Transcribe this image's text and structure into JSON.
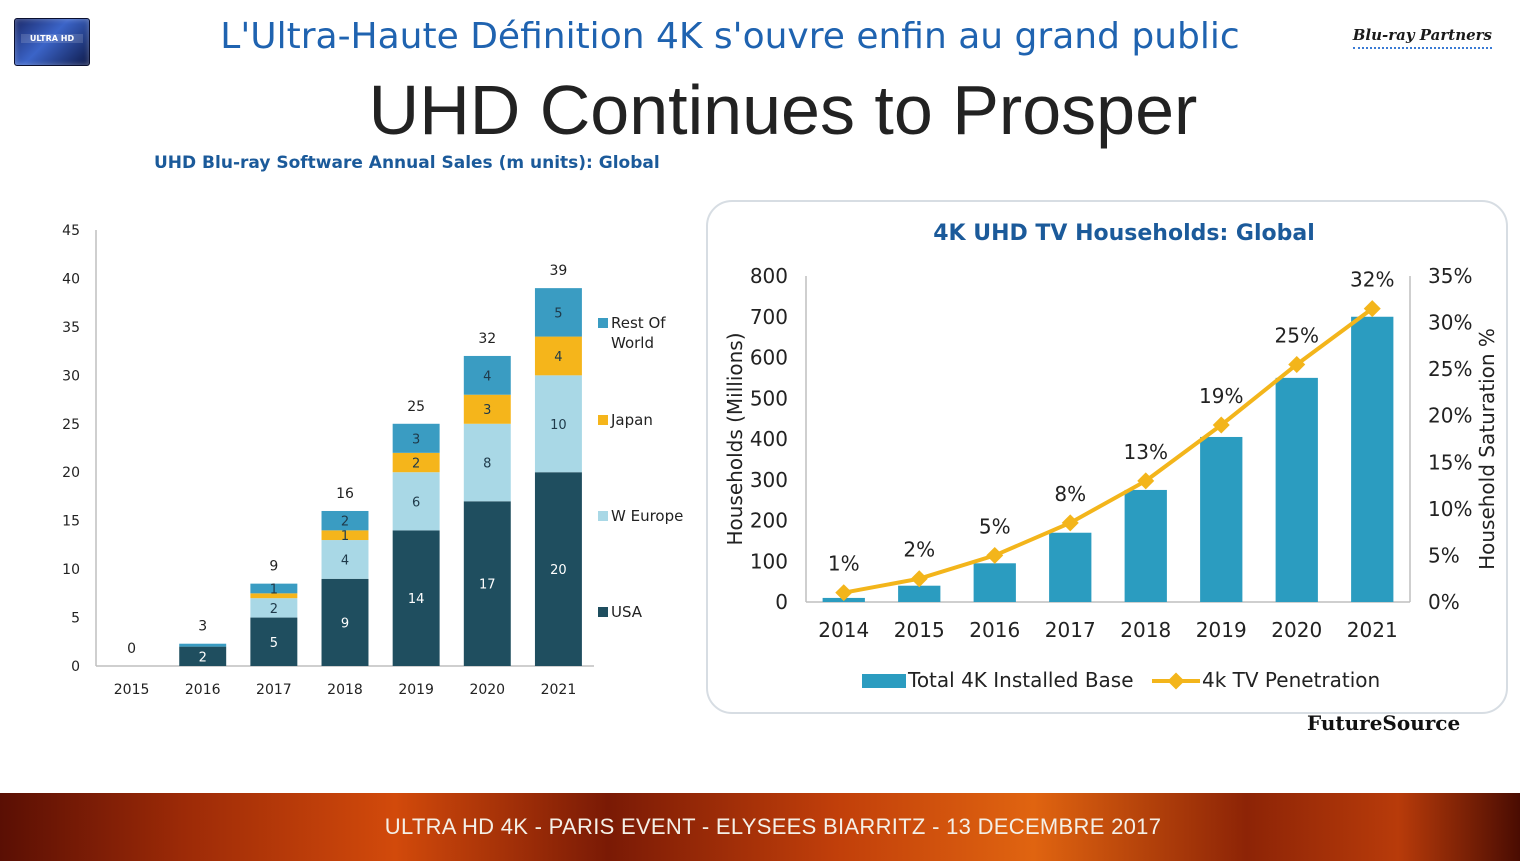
{
  "header": {
    "logo_text": "ULTRA HD",
    "top_title": "L'Ultra-Haute Définition 4K s'ouvre enfin au grand public",
    "partner_logo_text": "Blu-ray Partners",
    "main_title": "UHD Continues to Prosper"
  },
  "source_label": "FutureSource",
  "footer": {
    "text": "ULTRA HD 4K - PARIS EVENT - ELYSEES BIARRITZ - 13 DECEMBRE 2017"
  },
  "chart_data": [
    {
      "type": "bar",
      "stacked": true,
      "title": "UHD Blu-ray Software Annual Sales (m units): Global",
      "categories": [
        "2015",
        "2016",
        "2017",
        "2018",
        "2019",
        "2020",
        "2021"
      ],
      "series": [
        {
          "name": "USA",
          "color": "#1f4e5f",
          "values": [
            0,
            2,
            5,
            9,
            14,
            17,
            20
          ]
        },
        {
          "name": "W Europe",
          "color": "#a9d8e6",
          "values": [
            0,
            0,
            2,
            4,
            6,
            8,
            10
          ]
        },
        {
          "name": "Japan",
          "color": "#f5b51b",
          "values": [
            0,
            0,
            0.5,
            1,
            2,
            3,
            4
          ]
        },
        {
          "name": "Rest Of World",
          "color": "#3a9cc2",
          "values": [
            0,
            0.3,
            1,
            2,
            3,
            4,
            5
          ]
        }
      ],
      "segment_labels": {
        "USA": [
          "",
          "2",
          "5",
          "9",
          "14",
          "17",
          "20"
        ],
        "W Europe": [
          "",
          "",
          "2",
          "4",
          "6",
          "8",
          "10"
        ],
        "Japan": [
          "",
          "",
          "",
          "1",
          "2",
          "3",
          "4"
        ],
        "Rest Of World": [
          "",
          "",
          "1",
          "2",
          "3",
          "4",
          "5"
        ]
      },
      "totals": [
        "0",
        "3",
        "9",
        "16",
        "25",
        "32",
        "39"
      ],
      "ylim": [
        0,
        45
      ],
      "yticks": [
        "0",
        "5",
        "10",
        "15",
        "20",
        "25",
        "30",
        "35",
        "40",
        "45"
      ],
      "legend": [
        {
          "label": "Rest Of World",
          "color": "#3a9cc2"
        },
        {
          "label": "Japan",
          "color": "#f5b51b"
        },
        {
          "label": "W Europe",
          "color": "#a9d8e6"
        },
        {
          "label": "USA",
          "color": "#1f4e5f"
        }
      ],
      "legend_position": "right"
    },
    {
      "type": "bar",
      "title": "4K UHD TV Households: Global",
      "categories": [
        "2014",
        "2015",
        "2016",
        "2017",
        "2018",
        "2019",
        "2020",
        "2021"
      ],
      "series": [
        {
          "name": "Total 4K Installed Base",
          "type": "bar",
          "axis": "left",
          "color": "#2b9cc0",
          "values": [
            10,
            40,
            95,
            170,
            275,
            405,
            550,
            700
          ]
        },
        {
          "name": "4k TV Penetration",
          "type": "line",
          "axis": "right",
          "color": "#f3b51b",
          "values": [
            1,
            2.5,
            5,
            8.5,
            13,
            19,
            25.5,
            31.5
          ],
          "labels": [
            "1%",
            "2%",
            "5%",
            "8%",
            "13%",
            "19%",
            "25%",
            "32%"
          ]
        }
      ],
      "ylabel": "Households (Millions)",
      "y2label": "Household Saturation %",
      "ylim": [
        0,
        800
      ],
      "y2lim": [
        0,
        35
      ],
      "yticks": [
        "0",
        "100",
        "200",
        "300",
        "400",
        "500",
        "600",
        "700",
        "800"
      ],
      "y2ticks": [
        "0%",
        "5%",
        "10%",
        "15%",
        "20%",
        "25%",
        "30%",
        "35%"
      ],
      "legend_position": "bottom"
    }
  ]
}
